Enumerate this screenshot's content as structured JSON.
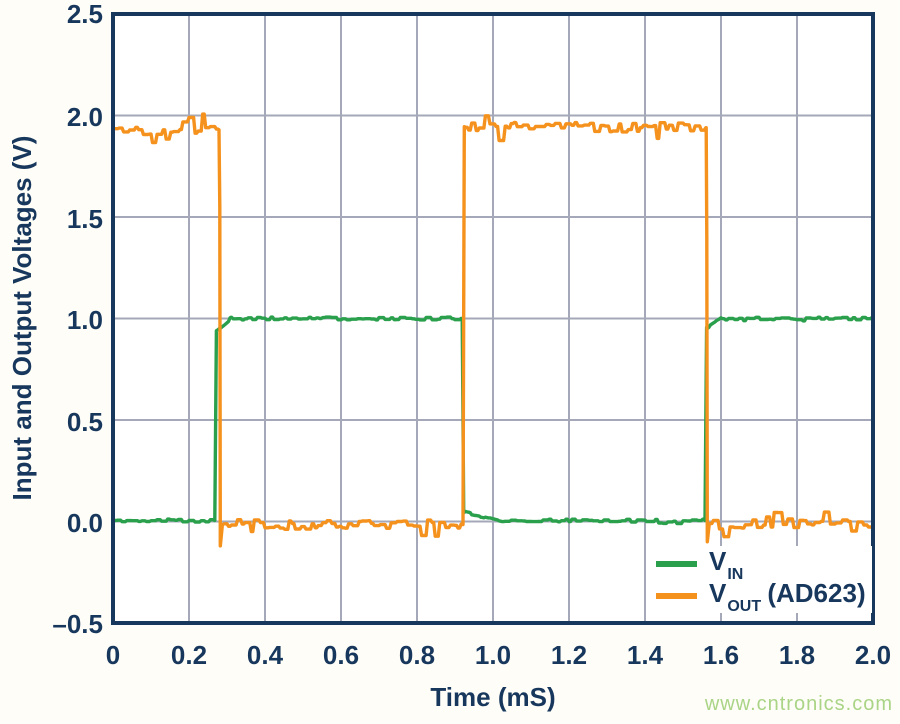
{
  "page": {
    "watermark": "www.cntronics.com"
  },
  "chart_data": {
    "type": "line",
    "title": "",
    "xlabel": "Time (mS)",
    "ylabel": "Input and Output Voltages (V)",
    "xlim": [
      0,
      2
    ],
    "ylim": [
      -0.5,
      2.5
    ],
    "grid": true,
    "xticks": [
      0,
      0.2,
      0.4,
      0.6,
      0.8,
      1.0,
      1.2,
      1.4,
      1.6,
      1.8,
      2.0
    ],
    "xtick_labels": [
      "0",
      "0.2",
      "0.4",
      "0.6",
      "0.8",
      "1.0",
      "1.2",
      "1.4",
      "1.6",
      "1.8",
      "2.0"
    ],
    "yticks": [
      2.5,
      2.0,
      1.5,
      1.0,
      0.5,
      0.0,
      -0.5
    ],
    "ytick_labels": [
      "2.5",
      "2.0",
      "1.5",
      "1.0",
      "0.5",
      "0.0",
      "–0.5"
    ],
    "colors": {
      "frame": "#17375C",
      "grid": "#A5A8B8",
      "text": "#17375C",
      "vin": "#2AA04C",
      "vout": "#F5921E",
      "watermark": "#AAD486"
    },
    "legend": {
      "position": "inside-bottom-right",
      "items": [
        {
          "main": "V",
          "sub": "IN",
          "suffix": "",
          "color": "#2AA04C"
        },
        {
          "main": "V",
          "sub": "OUT",
          "suffix": " (AD623)",
          "color": "#F5921E"
        }
      ]
    },
    "series": [
      {
        "name": "VIN",
        "description": "input square wave, 0 V to 1.0 V, period 1.3 ms",
        "color": "#2AA04C",
        "stroke_width": 3.4,
        "points": [
          [
            0,
            0.005
          ],
          [
            0.268,
            0.005
          ],
          [
            0.272,
            0.94
          ],
          [
            0.31,
            1.0
          ],
          [
            0.919,
            1.0
          ],
          [
            0.923,
            0.045
          ],
          [
            1.02,
            0.005
          ],
          [
            1.558,
            0.005
          ],
          [
            1.562,
            0.955
          ],
          [
            1.6,
            1.0
          ],
          [
            2,
            1.0
          ]
        ],
        "noise": 0.007,
        "spike_prob": 0.05,
        "spike": 0.012,
        "seed": 11
      },
      {
        "name": "VOUT (AD623)",
        "description": "output square wave, ~1.93 V to ~0 V, inverted vs VIN, noisy",
        "color": "#F5921E",
        "stroke_width": 3.4,
        "points": [
          [
            0,
            1.93
          ],
          [
            0.279,
            1.93
          ],
          [
            0.281,
            1.55
          ],
          [
            0.2825,
            -0.12
          ],
          [
            0.288,
            -0.015
          ],
          [
            0.921,
            -0.015
          ],
          [
            0.9245,
            1.945
          ],
          [
            1.561,
            1.94
          ],
          [
            1.5625,
            1.4
          ],
          [
            1.564,
            -0.1
          ],
          [
            1.569,
            -0.015
          ],
          [
            2,
            -0.015
          ]
        ],
        "noise": 0.024,
        "spike_prob": 0.1,
        "spike": 0.06,
        "seed": 42
      }
    ]
  }
}
